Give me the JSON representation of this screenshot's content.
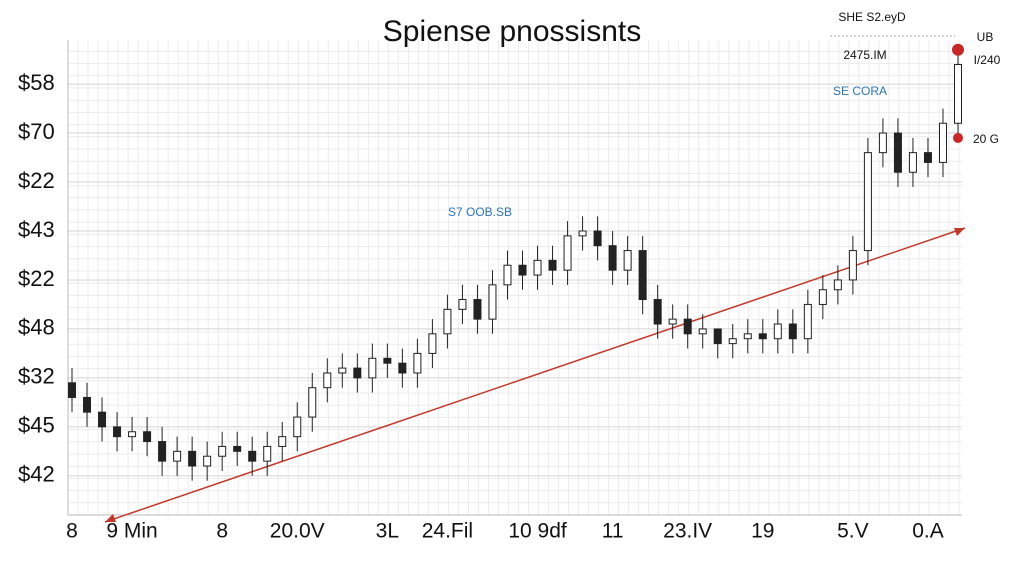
{
  "chart_data": {
    "type": "candlestick",
    "title": "Spiense pnossisnts",
    "annotations": [
      "S7 OOB.SB",
      "SE CORA",
      "SHE S2.eyD",
      "2475.IM",
      "UB",
      "I/240",
      "20 G"
    ],
    "categories": [
      "8",
      null,
      null,
      null,
      "9 Min",
      null,
      null,
      null,
      null,
      null,
      "8",
      null,
      null,
      null,
      null,
      "20.0V",
      null,
      null,
      null,
      null,
      null,
      "3L",
      null,
      null,
      null,
      "24.Fil",
      null,
      null,
      null,
      null,
      null,
      "10 9df",
      null,
      null,
      null,
      null,
      "11",
      null,
      null,
      null,
      null,
      "23.IV",
      null,
      null,
      null,
      null,
      "19",
      null,
      null,
      null,
      null,
      null,
      "5.V",
      null,
      null,
      null,
      null,
      "0.A",
      null,
      null
    ],
    "open": [
      2.9,
      2.6,
      2.3,
      2.0,
      1.8,
      1.9,
      1.7,
      1.3,
      1.5,
      1.2,
      1.4,
      1.6,
      1.5,
      1.3,
      1.6,
      1.8,
      2.2,
      2.8,
      3.1,
      3.2,
      3.0,
      3.4,
      3.3,
      3.1,
      3.5,
      3.9,
      4.4,
      4.6,
      4.2,
      4.9,
      5.3,
      5.1,
      5.4,
      5.2,
      5.9,
      6.0,
      5.7,
      5.2,
      5.6,
      4.6,
      4.1,
      4.2,
      3.9,
      4.0,
      3.7,
      3.8,
      3.9,
      3.8,
      4.1,
      3.8,
      4.5,
      4.8,
      5.0,
      5.6,
      7.6,
      8.0,
      7.2,
      7.6,
      7.4,
      8.2
    ],
    "high": [
      3.2,
      2.9,
      2.6,
      2.3,
      2.2,
      2.2,
      2.0,
      1.8,
      1.8,
      1.7,
      1.9,
      1.9,
      1.8,
      1.9,
      2.1,
      2.5,
      3.1,
      3.4,
      3.5,
      3.5,
      3.7,
      3.7,
      3.6,
      3.8,
      4.2,
      4.7,
      4.9,
      4.9,
      5.2,
      5.6,
      5.6,
      5.7,
      5.7,
      6.2,
      6.3,
      6.3,
      6.0,
      5.9,
      5.9,
      4.9,
      4.5,
      4.5,
      4.3,
      4.0,
      4.1,
      4.2,
      4.2,
      4.4,
      4.4,
      4.8,
      5.1,
      5.3,
      5.9,
      7.9,
      8.3,
      8.3,
      7.9,
      7.9,
      8.5,
      9.7
    ],
    "low": [
      2.3,
      2.0,
      1.7,
      1.5,
      1.5,
      1.4,
      1.0,
      1.0,
      0.9,
      0.9,
      1.1,
      1.2,
      1.0,
      1.0,
      1.3,
      1.5,
      1.9,
      2.5,
      2.8,
      2.7,
      2.7,
      3.0,
      2.8,
      2.8,
      3.2,
      3.6,
      4.1,
      3.9,
      3.9,
      4.6,
      4.8,
      4.8,
      4.9,
      4.9,
      5.6,
      5.4,
      4.9,
      4.9,
      4.3,
      3.8,
      3.8,
      3.6,
      3.6,
      3.4,
      3.4,
      3.5,
      3.5,
      3.5,
      3.5,
      3.5,
      4.2,
      4.5,
      4.7,
      5.3,
      7.3,
      6.9,
      6.9,
      7.1,
      7.1,
      7.9
    ],
    "close": [
      2.6,
      2.3,
      2.0,
      1.8,
      1.9,
      1.7,
      1.3,
      1.5,
      1.2,
      1.4,
      1.6,
      1.5,
      1.3,
      1.6,
      1.8,
      2.2,
      2.8,
      3.1,
      3.2,
      3.0,
      3.4,
      3.3,
      3.1,
      3.5,
      3.9,
      4.4,
      4.6,
      4.2,
      4.9,
      5.3,
      5.1,
      5.4,
      5.2,
      5.9,
      6.0,
      5.7,
      5.2,
      5.6,
      4.6,
      4.1,
      4.2,
      3.9,
      4.0,
      3.7,
      3.8,
      3.9,
      3.8,
      4.1,
      3.8,
      4.5,
      4.8,
      5.0,
      5.6,
      7.6,
      8.0,
      7.2,
      7.6,
      7.4,
      8.2,
      9.4
    ],
    "color": "#222222",
    "ylim": [
      0.2,
      9.9
    ],
    "yticks": [
      {
        "value": 1,
        "label": "$42"
      },
      {
        "value": 2,
        "label": "$45"
      },
      {
        "value": 3,
        "label": "$32"
      },
      {
        "value": 4,
        "label": "$48"
      },
      {
        "value": 5,
        "label": "$22"
      },
      {
        "value": 6,
        "label": "$43"
      },
      {
        "value": 7,
        "label": "$22"
      },
      {
        "value": 8,
        "label": "$70"
      },
      {
        "value": 9,
        "label": "$58"
      }
    ],
    "grid": true
  }
}
